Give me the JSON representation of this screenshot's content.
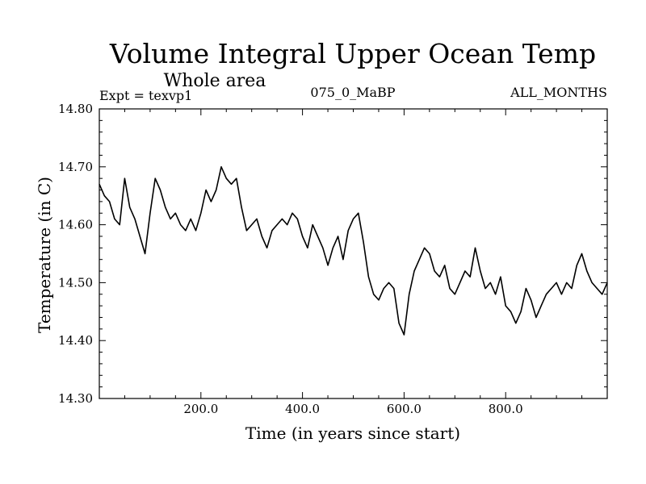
{
  "chart_data": {
    "type": "line",
    "title": "Volume Integral Upper Ocean Temp",
    "subtitle": "Whole area",
    "annotations": {
      "left": "Expt = texvp1",
      "center": "075_0_MaBP",
      "right": "ALL_MONTHS"
    },
    "xlabel": "Time (in years since start)",
    "ylabel": "Temperature (in C)",
    "xlim": [
      0,
      1000
    ],
    "ylim": [
      14.3,
      14.8
    ],
    "xticks": [
      200,
      400,
      600,
      800
    ],
    "xtick_labels": [
      "200.0",
      "400.0",
      "600.0",
      "800.0"
    ],
    "yticks": [
      14.3,
      14.4,
      14.5,
      14.6,
      14.7,
      14.8
    ],
    "ytick_labels": [
      "14.30",
      "14.40",
      "14.50",
      "14.60",
      "14.70",
      "14.80"
    ],
    "grid": false,
    "series": [
      {
        "name": "Temperature",
        "color": "#000000",
        "x": [
          0,
          10,
          20,
          30,
          40,
          50,
          60,
          70,
          80,
          90,
          100,
          110,
          120,
          130,
          140,
          150,
          160,
          170,
          180,
          190,
          200,
          210,
          220,
          230,
          240,
          250,
          260,
          270,
          280,
          290,
          300,
          310,
          320,
          330,
          340,
          350,
          360,
          370,
          380,
          390,
          400,
          410,
          420,
          430,
          440,
          450,
          460,
          470,
          480,
          490,
          500,
          510,
          520,
          530,
          540,
          550,
          560,
          570,
          580,
          590,
          600,
          610,
          620,
          630,
          640,
          650,
          660,
          670,
          680,
          690,
          700,
          710,
          720,
          730,
          740,
          750,
          760,
          770,
          780,
          790,
          800,
          810,
          820,
          830,
          840,
          850,
          860,
          870,
          880,
          890,
          900,
          910,
          920,
          930,
          940,
          950,
          960,
          970,
          980,
          990,
          1000
        ],
        "values": [
          14.67,
          14.65,
          14.64,
          14.61,
          14.6,
          14.68,
          14.63,
          14.61,
          14.58,
          14.55,
          14.62,
          14.68,
          14.66,
          14.63,
          14.61,
          14.62,
          14.6,
          14.59,
          14.61,
          14.59,
          14.62,
          14.66,
          14.64,
          14.66,
          14.7,
          14.68,
          14.67,
          14.68,
          14.63,
          14.59,
          14.6,
          14.61,
          14.58,
          14.56,
          14.59,
          14.6,
          14.61,
          14.6,
          14.62,
          14.61,
          14.58,
          14.56,
          14.6,
          14.58,
          14.56,
          14.53,
          14.56,
          14.58,
          14.54,
          14.59,
          14.61,
          14.62,
          14.57,
          14.51,
          14.48,
          14.47,
          14.49,
          14.5,
          14.49,
          14.43,
          14.41,
          14.48,
          14.52,
          14.54,
          14.56,
          14.55,
          14.52,
          14.51,
          14.53,
          14.49,
          14.48,
          14.5,
          14.52,
          14.51,
          14.56,
          14.52,
          14.49,
          14.5,
          14.48,
          14.51,
          14.46,
          14.45,
          14.43,
          14.45,
          14.49,
          14.47,
          14.44,
          14.46,
          14.48,
          14.49,
          14.5,
          14.48,
          14.5,
          14.49,
          14.53,
          14.55,
          14.52,
          14.5,
          14.49,
          14.48,
          14.5
        ]
      }
    ]
  }
}
